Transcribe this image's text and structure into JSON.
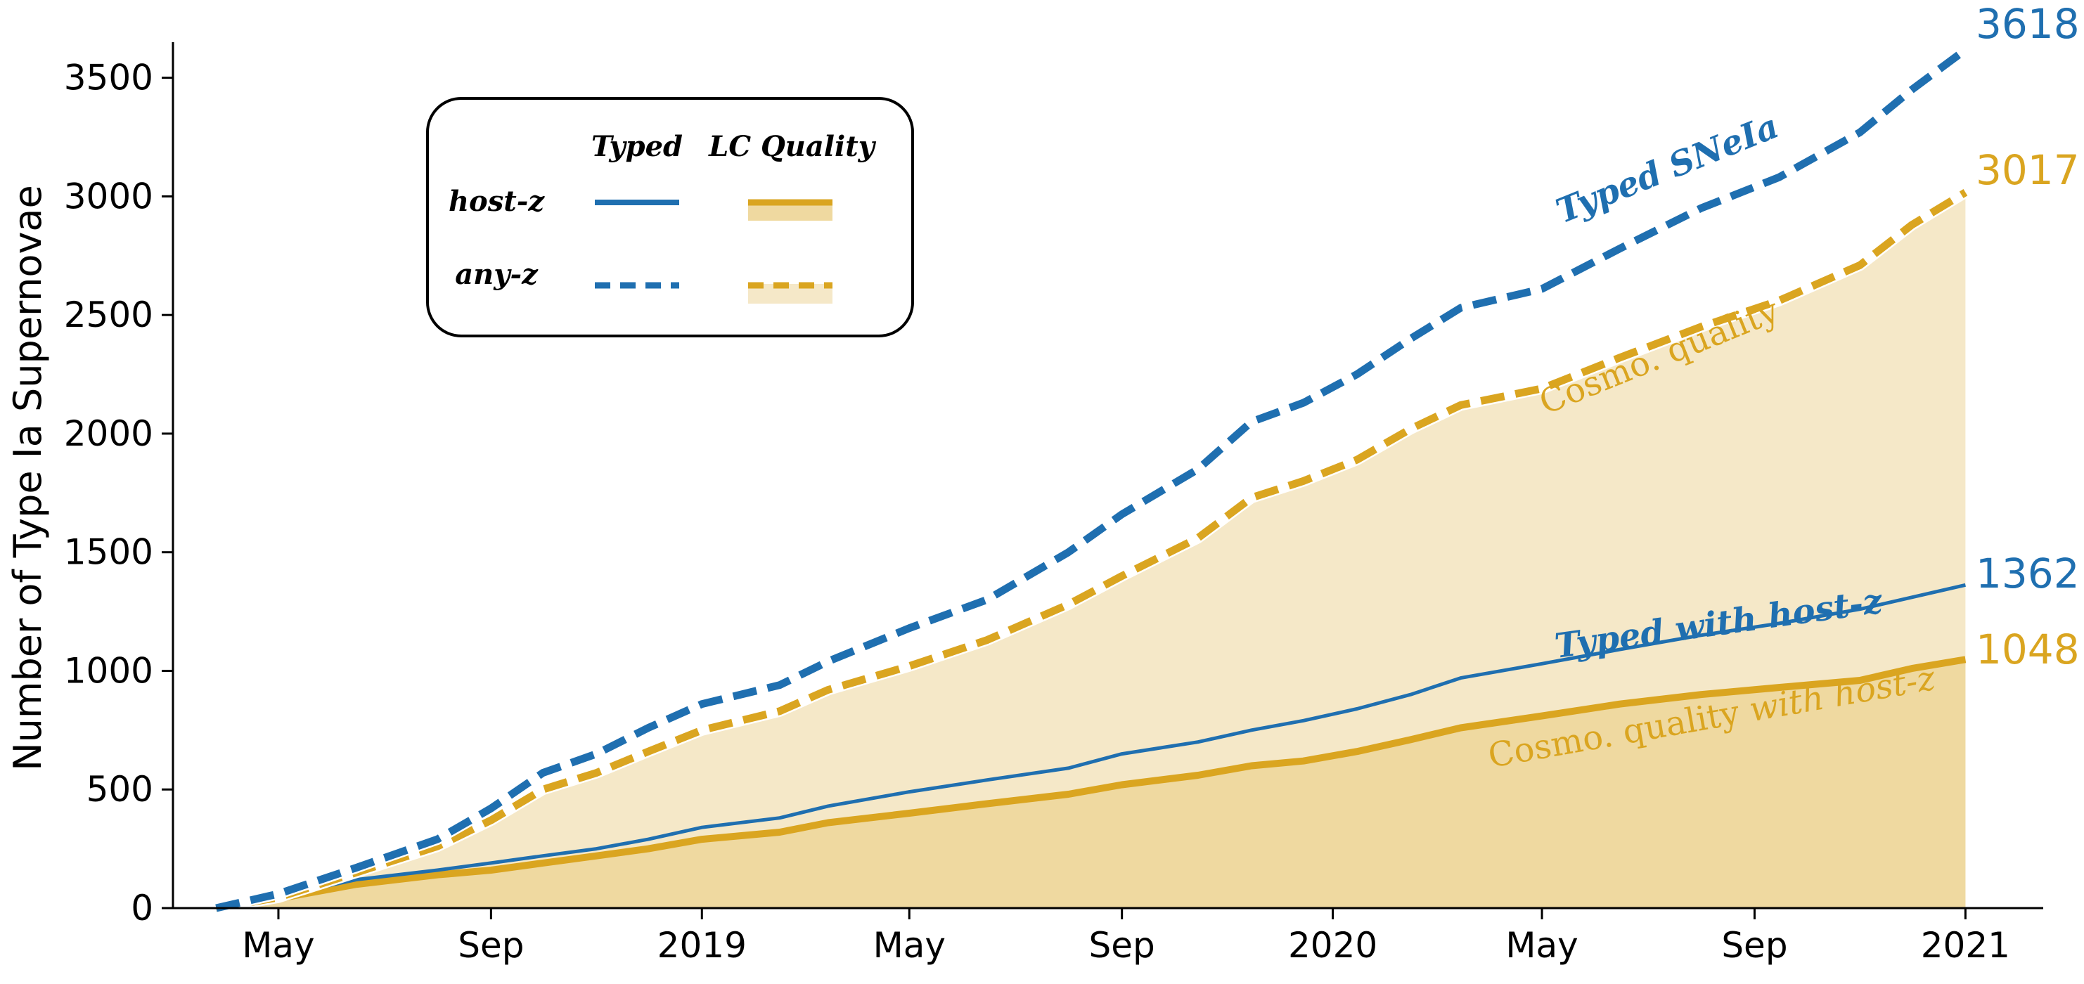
{
  "chart_data": {
    "type": "area",
    "x_axis": {
      "type": "date",
      "range": [
        "2018-03-01",
        "2021-02-15"
      ],
      "ticks": [
        {
          "date": "2018-05-01",
          "label": "May"
        },
        {
          "date": "2018-09-01",
          "label": "Sep"
        },
        {
          "date": "2019-01-01",
          "label": "2019"
        },
        {
          "date": "2019-05-01",
          "label": "May"
        },
        {
          "date": "2019-09-01",
          "label": "Sep"
        },
        {
          "date": "2020-01-01",
          "label": "2020"
        },
        {
          "date": "2020-05-01",
          "label": "May"
        },
        {
          "date": "2020-09-01",
          "label": "Sep"
        },
        {
          "date": "2021-01-01",
          "label": "2021"
        }
      ]
    },
    "y_axis": {
      "label": "Number of Type Ia Supernovae",
      "range": [
        0,
        3650
      ],
      "ticks": [
        0,
        500,
        1000,
        1500,
        2000,
        2500,
        3000,
        3500
      ]
    },
    "grid": false,
    "legend": {
      "placement": "top-left",
      "column_headers": [
        "Typed",
        "LC Quality"
      ],
      "row_labels": [
        "host-z",
        "any-z"
      ]
    },
    "series": [
      {
        "name": "Typed SNeIa",
        "label": "Typed SNeIa",
        "end_value": "3618",
        "style": "dashed",
        "color": "#1f6fb0",
        "points": [
          [
            "2018-03-26",
            0
          ],
          [
            "2018-05-01",
            60
          ],
          [
            "2018-06-15",
            170
          ],
          [
            "2018-08-01",
            290
          ],
          [
            "2018-09-01",
            420
          ],
          [
            "2018-10-01",
            570
          ],
          [
            "2018-11-01",
            650
          ],
          [
            "2018-12-01",
            760
          ],
          [
            "2019-01-01",
            860
          ],
          [
            "2019-02-15",
            940
          ],
          [
            "2019-03-15",
            1040
          ],
          [
            "2019-05-01",
            1180
          ],
          [
            "2019-06-15",
            1300
          ],
          [
            "2019-08-01",
            1500
          ],
          [
            "2019-09-01",
            1660
          ],
          [
            "2019-10-15",
            1850
          ],
          [
            "2019-11-15",
            2050
          ],
          [
            "2019-12-15",
            2130
          ],
          [
            "2020-01-15",
            2250
          ],
          [
            "2020-02-15",
            2400
          ],
          [
            "2020-03-15",
            2530
          ],
          [
            "2020-05-01",
            2610
          ],
          [
            "2020-06-15",
            2780
          ],
          [
            "2020-08-01",
            2950
          ],
          [
            "2020-09-15",
            3080
          ],
          [
            "2020-11-01",
            3270
          ],
          [
            "2020-12-01",
            3450
          ],
          [
            "2021-01-01",
            3618
          ]
        ]
      },
      {
        "name": "Cosmo. quality",
        "label": "Cosmo. quality",
        "end_value": "3017",
        "style": "dashed",
        "color": "#daa520",
        "fill": "#f5e8c8",
        "points": [
          [
            "2018-03-26",
            0
          ],
          [
            "2018-05-01",
            45
          ],
          [
            "2018-06-15",
            150
          ],
          [
            "2018-08-01",
            260
          ],
          [
            "2018-09-01",
            370
          ],
          [
            "2018-10-01",
            500
          ],
          [
            "2018-11-01",
            570
          ],
          [
            "2018-12-01",
            660
          ],
          [
            "2019-01-01",
            750
          ],
          [
            "2019-02-15",
            830
          ],
          [
            "2019-03-15",
            920
          ],
          [
            "2019-05-01",
            1020
          ],
          [
            "2019-06-15",
            1130
          ],
          [
            "2019-08-01",
            1280
          ],
          [
            "2019-09-01",
            1400
          ],
          [
            "2019-10-15",
            1560
          ],
          [
            "2019-11-15",
            1730
          ],
          [
            "2019-12-15",
            1800
          ],
          [
            "2020-01-15",
            1890
          ],
          [
            "2020-02-15",
            2020
          ],
          [
            "2020-03-15",
            2120
          ],
          [
            "2020-05-01",
            2190
          ],
          [
            "2020-06-15",
            2320
          ],
          [
            "2020-08-01",
            2450
          ],
          [
            "2020-09-15",
            2560
          ],
          [
            "2020-11-01",
            2710
          ],
          [
            "2020-12-01",
            2880
          ],
          [
            "2021-01-01",
            3017
          ]
        ]
      },
      {
        "name": "Typed with host-z",
        "label": "Typed with host-z",
        "end_value": "1362",
        "style": "solid",
        "color": "#1f6fb0",
        "points": [
          [
            "2018-03-26",
            0
          ],
          [
            "2018-05-01",
            50
          ],
          [
            "2018-06-15",
            120
          ],
          [
            "2018-08-01",
            160
          ],
          [
            "2018-09-01",
            190
          ],
          [
            "2018-10-01",
            220
          ],
          [
            "2018-11-01",
            250
          ],
          [
            "2018-12-01",
            290
          ],
          [
            "2019-01-01",
            340
          ],
          [
            "2019-02-15",
            380
          ],
          [
            "2019-03-15",
            430
          ],
          [
            "2019-05-01",
            490
          ],
          [
            "2019-06-15",
            540
          ],
          [
            "2019-08-01",
            590
          ],
          [
            "2019-09-01",
            650
          ],
          [
            "2019-10-15",
            700
          ],
          [
            "2019-11-15",
            750
          ],
          [
            "2019-12-15",
            790
          ],
          [
            "2020-01-15",
            840
          ],
          [
            "2020-02-15",
            900
          ],
          [
            "2020-03-15",
            970
          ],
          [
            "2020-05-01",
            1030
          ],
          [
            "2020-06-15",
            1090
          ],
          [
            "2020-08-01",
            1150
          ],
          [
            "2020-09-15",
            1200
          ],
          [
            "2020-11-01",
            1260
          ],
          [
            "2020-12-01",
            1310
          ],
          [
            "2021-01-01",
            1362
          ]
        ]
      },
      {
        "name": "Cosmo. quality with host-z",
        "label_prefix": "Cosmo. quality ",
        "label_suffix": "with host-z",
        "end_value": "1048",
        "style": "solid",
        "color": "#daa520",
        "fill": "#efd9a0",
        "points": [
          [
            "2018-03-26",
            0
          ],
          [
            "2018-05-01",
            40
          ],
          [
            "2018-06-15",
            100
          ],
          [
            "2018-08-01",
            140
          ],
          [
            "2018-09-01",
            160
          ],
          [
            "2018-10-01",
            190
          ],
          [
            "2018-11-01",
            220
          ],
          [
            "2018-12-01",
            250
          ],
          [
            "2019-01-01",
            290
          ],
          [
            "2019-02-15",
            320
          ],
          [
            "2019-03-15",
            360
          ],
          [
            "2019-05-01",
            400
          ],
          [
            "2019-06-15",
            440
          ],
          [
            "2019-08-01",
            480
          ],
          [
            "2019-09-01",
            520
          ],
          [
            "2019-10-15",
            560
          ],
          [
            "2019-11-15",
            600
          ],
          [
            "2019-12-15",
            620
          ],
          [
            "2020-01-15",
            660
          ],
          [
            "2020-02-15",
            710
          ],
          [
            "2020-03-15",
            760
          ],
          [
            "2020-05-01",
            810
          ],
          [
            "2020-06-15",
            860
          ],
          [
            "2020-08-01",
            900
          ],
          [
            "2020-09-15",
            930
          ],
          [
            "2020-11-01",
            960
          ],
          [
            "2020-12-01",
            1010
          ],
          [
            "2021-01-01",
            1048
          ]
        ]
      }
    ]
  }
}
